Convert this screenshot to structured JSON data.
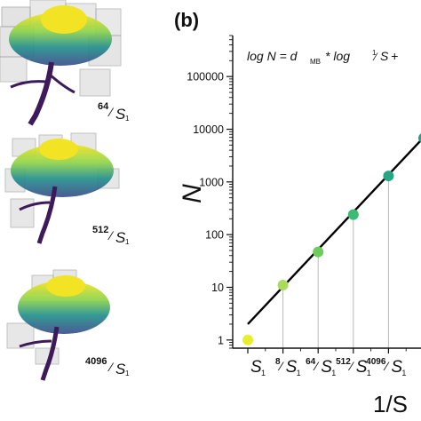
{
  "panel_left": {
    "labels": [
      {
        "num": "64",
        "sub": "1"
      },
      {
        "num": "512",
        "sub": "1"
      },
      {
        "num": "4096",
        "sub": "1"
      }
    ]
  },
  "chart_data": {
    "type": "scatter",
    "panel_label": "(b)",
    "formula": {
      "prefix": "log N = d",
      "subscript": "MB",
      "middle": " * log ",
      "frac_num": "1",
      "frac_den": "S",
      "suffix": " +"
    },
    "ylabel": "N",
    "xlabel": "1/S",
    "y_scale": "log",
    "ylim": [
      0.7,
      600000
    ],
    "yticks": [
      {
        "value": 1,
        "label": "1"
      },
      {
        "value": 10,
        "label": "10"
      },
      {
        "value": 100,
        "label": "100"
      },
      {
        "value": 1000,
        "label": "1000"
      },
      {
        "value": 10000,
        "label": "10000"
      },
      {
        "value": 100000,
        "label": "100000"
      }
    ],
    "x_scale": "log",
    "xticks": [
      {
        "value": 1,
        "num": "",
        "main": "S",
        "sub": "1"
      },
      {
        "value": 8,
        "num": "8",
        "main": "S",
        "sub": "1"
      },
      {
        "value": 64,
        "num": "64",
        "main": "S",
        "sub": "1"
      },
      {
        "value": 512,
        "num": "512",
        "main": "S",
        "sub": "1"
      },
      {
        "value": 4096,
        "num": "4096",
        "main": "S",
        "sub": "1"
      }
    ],
    "points": [
      {
        "x": 1,
        "y": 1,
        "color": "#e6ef2a"
      },
      {
        "x": 8,
        "y": 11,
        "color": "#a9dc5e"
      },
      {
        "x": 64,
        "y": 47,
        "color": "#6ccd5a"
      },
      {
        "x": 512,
        "y": 240,
        "color": "#3cbb75"
      },
      {
        "x": 4096,
        "y": 1300,
        "color": "#26a685"
      },
      {
        "x": 32768,
        "y": 6800,
        "color": "#2a9a8a"
      }
    ],
    "fit_line": {
      "x": [
        1,
        40000
      ],
      "y": [
        2,
        8200
      ],
      "color": "#000000"
    },
    "grid": false,
    "legend": "none"
  }
}
